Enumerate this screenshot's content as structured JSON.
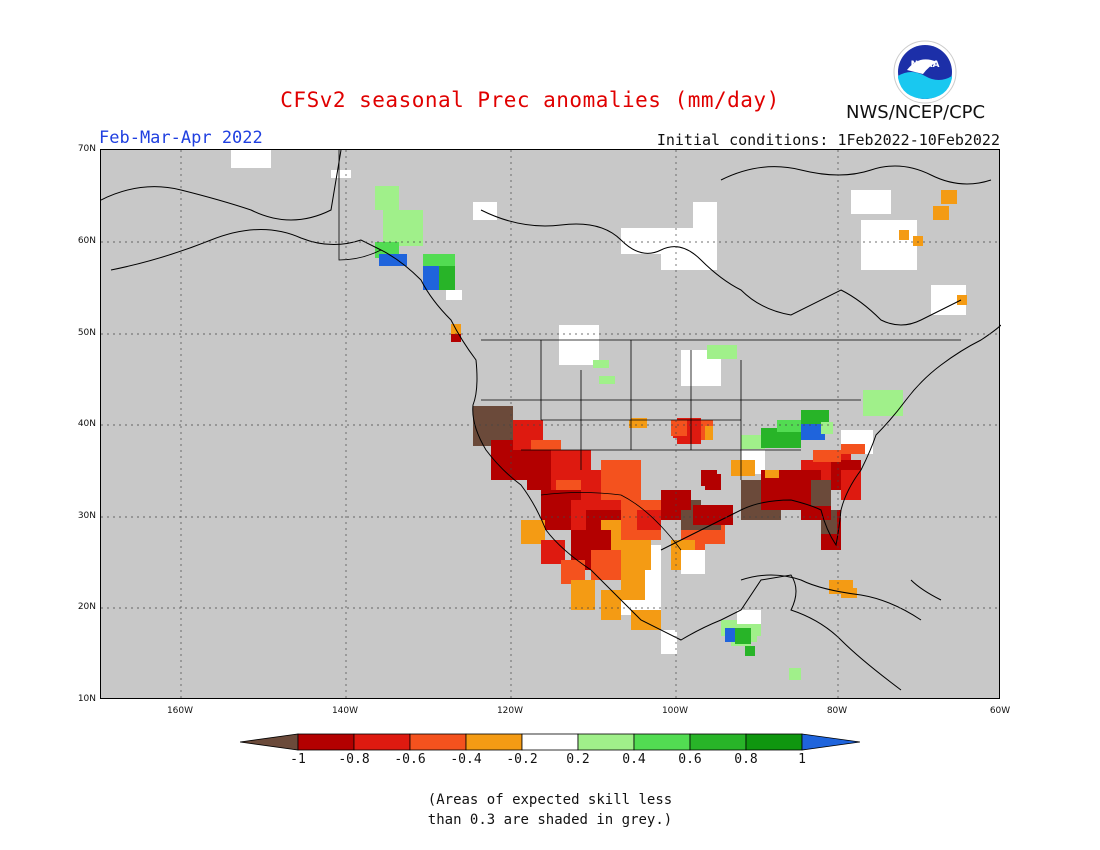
{
  "title": "CFSv2 seasonal Prec anomalies (mm/day)",
  "period": "Feb-Mar-Apr 2022",
  "initial_conditions": "Initial conditions: 1Feb2022-10Feb2022",
  "agency": "NWS/NCEP/CPC",
  "logo_text": "NOAA",
  "lat_labels": [
    "70N",
    "60N",
    "50N",
    "40N",
    "30N",
    "20N",
    "10N"
  ],
  "lon_labels": [
    "160W",
    "140W",
    "120W",
    "100W",
    "80W",
    "60W"
  ],
  "colorbar": {
    "ticks": [
      "-1",
      "-0.8",
      "-0.6",
      "-0.4",
      "-0.2",
      "0.2",
      "0.4",
      "0.6",
      "0.8",
      "1"
    ],
    "colors": [
      "#6b4a3a",
      "#b30000",
      "#de1a10",
      "#f4521e",
      "#f49b14",
      "#ffffff",
      "#a0f08a",
      "#52dc52",
      "#28b428",
      "#0f960f",
      "#1f64dc"
    ]
  },
  "note_line1": "(Areas of expected skill less",
  "note_line2": "than 0.3 are shaded in grey.)",
  "colors": {
    "brown": "#6b4a3a",
    "dark_red": "#b30000",
    "red": "#de1a10",
    "orange_red": "#f4521e",
    "orange": "#f49b14",
    "white": "#ffffff",
    "light_green": "#a0f08a",
    "green": "#52dc52",
    "mid_green": "#28b428",
    "dark_green": "#0f960f",
    "blue": "#1f64dc",
    "land_mask": "#c8c8c8"
  }
}
